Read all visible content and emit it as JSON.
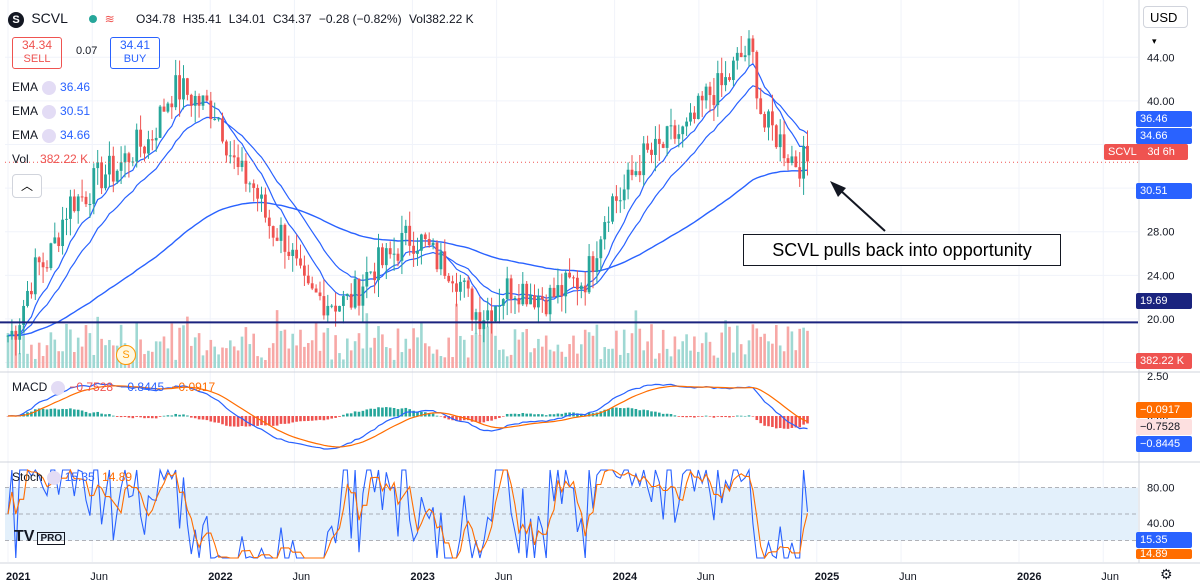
{
  "header": {
    "symbol": "SCVL",
    "open": "O34.78",
    "high": "H35.41",
    "low": "L34.01",
    "close": "C34.37",
    "change": "−0.28 (−0.82%)",
    "volume": "Vol382.22 K"
  },
  "trade": {
    "sell_price": "34.34",
    "sell_label": "SELL",
    "spread": "0.07",
    "buy_price": "34.41",
    "buy_label": "BUY"
  },
  "indicators": {
    "ema1": {
      "label": "EMA",
      "value": "36.46",
      "color": "#3a5fd0"
    },
    "ema2": {
      "label": "EMA",
      "value": "30.51",
      "color": "#3a5fd0"
    },
    "ema3": {
      "label": "EMA",
      "value": "34.66",
      "color": "#3a5fd0"
    },
    "vol": {
      "label": "Vol",
      "value": "382.22 K"
    },
    "macd": {
      "label": "MACD",
      "v1": "−0.7528",
      "v2": "−0.8445",
      "v3": "−0.0917"
    },
    "stoch": {
      "label": "Stoch",
      "v1": "15.35",
      "v2": "14.89"
    }
  },
  "currency": "USD",
  "annotation": "SCVL pulls back into opportunity",
  "price_tags": {
    "ema_fast": "36.46",
    "ema_mid": "34.66",
    "ema_slow": "30.51",
    "symbol_tag": "SCVL",
    "countdown": "3d 6h",
    "support": "19.69",
    "volume": "382.22 K",
    "macd_signal": "−0.0917",
    "macd_line": "−0.7528",
    "macd_hist": "−0.8445",
    "stoch_k": "15.35",
    "stoch_d": "14.89"
  },
  "colors": {
    "up": "#26a69a",
    "down": "#ef5350",
    "ema": "#2962ff",
    "support": "#1a237e",
    "macd": "#2962ff",
    "signal": "#ff6d00",
    "stoch_d": "#ff6d00"
  },
  "chart_data": {
    "type": "candlestick",
    "price_axis": {
      "ticks": [
        16.0,
        20.0,
        24.0,
        28.0,
        32.0,
        36.0,
        40.0,
        44.0
      ],
      "range": [
        15.5,
        46.5
      ]
    },
    "time_axis": [
      "2021",
      "Jun",
      "2022",
      "Jun",
      "2023",
      "Jun",
      "2024",
      "Jun",
      "2025",
      "Jun",
      "2026",
      "Jun"
    ],
    "support_level": 19.69,
    "macd_axis": {
      "ticks": [
        2.5,
        0.0
      ]
    },
    "stoch_axis": {
      "ticks": [
        80.0,
        40.0
      ],
      "band": [
        20,
        80
      ]
    },
    "weekly_close_approx": [
      [
        "2021-01",
        18.5
      ],
      [
        "2021-03",
        25.0
      ],
      [
        "2021-05",
        31.0
      ],
      [
        "2021-07",
        33.5
      ],
      [
        "2021-09",
        36.0
      ],
      [
        "2021-11",
        41.0
      ],
      [
        "2022-01",
        39.5
      ],
      [
        "2022-03",
        33.0
      ],
      [
        "2022-05",
        28.0
      ],
      [
        "2022-07",
        22.0
      ],
      [
        "2022-09",
        21.5
      ],
      [
        "2022-11",
        25.0
      ],
      [
        "2023-01",
        27.5
      ],
      [
        "2023-03",
        25.0
      ],
      [
        "2023-05",
        20.5
      ],
      [
        "2023-07",
        23.0
      ],
      [
        "2023-09",
        22.0
      ],
      [
        "2023-11",
        23.5
      ],
      [
        "2024-01",
        31.0
      ],
      [
        "2024-03",
        35.0
      ],
      [
        "2024-05",
        37.0
      ],
      [
        "2024-07",
        41.0
      ],
      [
        "2024-09",
        44.5
      ],
      [
        "2024-10",
        37.5
      ],
      [
        "2024-12",
        34.4
      ]
    ]
  }
}
